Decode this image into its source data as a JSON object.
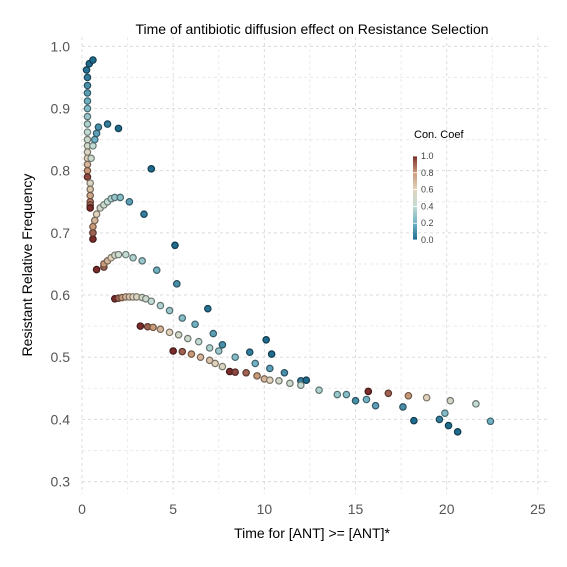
{
  "chart_data": {
    "type": "scatter",
    "title": "Time of antibiotic diffusion effect on Resistance Selection",
    "xlabel": "Time for [ANT] >= [ANT]*",
    "ylabel": "Resistant Relative Frequency",
    "xlim": [
      0,
      25.5
    ],
    "ylim": [
      0.28,
      1.015
    ],
    "xticks": [
      0,
      5,
      10,
      15,
      20,
      25
    ],
    "yticks": [
      0.3,
      0.4,
      0.5,
      0.6,
      0.7,
      0.8,
      0.9,
      1.0
    ],
    "x_tick_labels": [
      "0",
      "5",
      "10",
      "15",
      "20",
      "25"
    ],
    "y_tick_labels": [
      "0.3",
      "0.4",
      "0.5",
      "0.6",
      "0.7",
      "0.8",
      "0.9",
      "1.0"
    ],
    "grid": true,
    "legend": {
      "title": "Con. Coef",
      "placement": "right",
      "ticks": [
        "1.0",
        "0.8",
        "0.6",
        "0.4",
        "0.2",
        "0.0"
      ],
      "colormap": [
        "#1f6b8e",
        "#70b2c4",
        "#c3dcd3",
        "#e1d3bc",
        "#c89978",
        "#7a2c2a"
      ]
    },
    "color_scale": "con_coef",
    "points": [
      {
        "x": 0.25,
        "y": 0.962,
        "c": 0.02
      },
      {
        "x": 0.3,
        "y": 0.95,
        "c": 0.05
      },
      {
        "x": 0.3,
        "y": 0.937,
        "c": 0.1
      },
      {
        "x": 0.3,
        "y": 0.925,
        "c": 0.15
      },
      {
        "x": 0.3,
        "y": 0.912,
        "c": 0.2
      },
      {
        "x": 0.3,
        "y": 0.9,
        "c": 0.25
      },
      {
        "x": 0.3,
        "y": 0.887,
        "c": 0.3
      },
      {
        "x": 0.3,
        "y": 0.875,
        "c": 0.35
      },
      {
        "x": 0.3,
        "y": 0.862,
        "c": 0.4
      },
      {
        "x": 0.3,
        "y": 0.85,
        "c": 0.45
      },
      {
        "x": 0.3,
        "y": 0.84,
        "c": 0.5
      },
      {
        "x": 0.3,
        "y": 0.83,
        "c": 0.55
      },
      {
        "x": 0.3,
        "y": 0.82,
        "c": 0.6
      },
      {
        "x": 0.3,
        "y": 0.81,
        "c": 0.7
      },
      {
        "x": 0.3,
        "y": 0.8,
        "c": 0.8
      },
      {
        "x": 0.3,
        "y": 0.79,
        "c": 0.95
      },
      {
        "x": 0.4,
        "y": 0.972,
        "c": 0.0
      },
      {
        "x": 0.6,
        "y": 0.978,
        "c": 0.0
      },
      {
        "x": 0.45,
        "y": 0.78,
        "c": 0.55
      },
      {
        "x": 0.45,
        "y": 0.77,
        "c": 0.65
      },
      {
        "x": 0.45,
        "y": 0.76,
        "c": 0.75
      },
      {
        "x": 0.45,
        "y": 0.75,
        "c": 0.85
      },
      {
        "x": 0.45,
        "y": 0.745,
        "c": 0.9
      },
      {
        "x": 0.45,
        "y": 0.74,
        "c": 1.0
      },
      {
        "x": 0.5,
        "y": 0.82,
        "c": 0.45
      },
      {
        "x": 0.6,
        "y": 0.84,
        "c": 0.4
      },
      {
        "x": 0.7,
        "y": 0.85,
        "c": 0.2
      },
      {
        "x": 0.8,
        "y": 0.86,
        "c": 0.15
      },
      {
        "x": 0.9,
        "y": 0.87,
        "c": 0.1
      },
      {
        "x": 1.4,
        "y": 0.875,
        "c": 0.05
      },
      {
        "x": 2.0,
        "y": 0.868,
        "c": 0.0
      },
      {
        "x": 3.8,
        "y": 0.803,
        "c": 0.0
      },
      {
        "x": 0.6,
        "y": 0.69,
        "c": 1.0
      },
      {
        "x": 0.6,
        "y": 0.7,
        "c": 0.9
      },
      {
        "x": 0.6,
        "y": 0.71,
        "c": 0.8
      },
      {
        "x": 0.7,
        "y": 0.72,
        "c": 0.7
      },
      {
        "x": 0.8,
        "y": 0.73,
        "c": 0.6
      },
      {
        "x": 1.0,
        "y": 0.74,
        "c": 0.5
      },
      {
        "x": 1.2,
        "y": 0.745,
        "c": 0.45
      },
      {
        "x": 1.4,
        "y": 0.75,
        "c": 0.4
      },
      {
        "x": 1.6,
        "y": 0.755,
        "c": 0.35
      },
      {
        "x": 1.8,
        "y": 0.757,
        "c": 0.3
      },
      {
        "x": 2.1,
        "y": 0.757,
        "c": 0.25
      },
      {
        "x": 2.6,
        "y": 0.75,
        "c": 0.15
      },
      {
        "x": 3.4,
        "y": 0.73,
        "c": 0.05
      },
      {
        "x": 5.1,
        "y": 0.68,
        "c": 0.0
      },
      {
        "x": 0.8,
        "y": 0.641,
        "c": 1.0
      },
      {
        "x": 1.2,
        "y": 0.645,
        "c": 0.9
      },
      {
        "x": 1.2,
        "y": 0.65,
        "c": 0.8
      },
      {
        "x": 1.4,
        "y": 0.655,
        "c": 0.7
      },
      {
        "x": 1.6,
        "y": 0.66,
        "c": 0.6
      },
      {
        "x": 1.8,
        "y": 0.664,
        "c": 0.5
      },
      {
        "x": 2.0,
        "y": 0.665,
        "c": 0.45
      },
      {
        "x": 2.4,
        "y": 0.665,
        "c": 0.4
      },
      {
        "x": 2.8,
        "y": 0.66,
        "c": 0.35
      },
      {
        "x": 3.3,
        "y": 0.655,
        "c": 0.3
      },
      {
        "x": 4.1,
        "y": 0.64,
        "c": 0.2
      },
      {
        "x": 5.2,
        "y": 0.618,
        "c": 0.1
      },
      {
        "x": 6.9,
        "y": 0.578,
        "c": 0.02
      },
      {
        "x": 1.8,
        "y": 0.594,
        "c": 1.0
      },
      {
        "x": 2.0,
        "y": 0.595,
        "c": 0.9
      },
      {
        "x": 2.2,
        "y": 0.596,
        "c": 0.8
      },
      {
        "x": 2.4,
        "y": 0.597,
        "c": 0.7
      },
      {
        "x": 2.6,
        "y": 0.597,
        "c": 0.65
      },
      {
        "x": 2.8,
        "y": 0.597,
        "c": 0.6
      },
      {
        "x": 3.0,
        "y": 0.597,
        "c": 0.55
      },
      {
        "x": 3.3,
        "y": 0.596,
        "c": 0.5
      },
      {
        "x": 3.5,
        "y": 0.594,
        "c": 0.45
      },
      {
        "x": 3.8,
        "y": 0.59,
        "c": 0.4
      },
      {
        "x": 4.3,
        "y": 0.583,
        "c": 0.35
      },
      {
        "x": 4.8,
        "y": 0.575,
        "c": 0.3
      },
      {
        "x": 5.5,
        "y": 0.563,
        "c": 0.25
      },
      {
        "x": 6.2,
        "y": 0.553,
        "c": 0.2
      },
      {
        "x": 7.2,
        "y": 0.538,
        "c": 0.15
      },
      {
        "x": 7.7,
        "y": 0.52,
        "c": 0.1
      },
      {
        "x": 9.2,
        "y": 0.508,
        "c": 0.05
      },
      {
        "x": 10.1,
        "y": 0.528,
        "c": 0.0
      },
      {
        "x": 10.4,
        "y": 0.505,
        "c": 0.0
      },
      {
        "x": 3.2,
        "y": 0.55,
        "c": 1.0
      },
      {
        "x": 3.6,
        "y": 0.549,
        "c": 0.9
      },
      {
        "x": 3.9,
        "y": 0.548,
        "c": 0.8
      },
      {
        "x": 4.3,
        "y": 0.545,
        "c": 0.7
      },
      {
        "x": 4.8,
        "y": 0.54,
        "c": 0.6
      },
      {
        "x": 5.3,
        "y": 0.536,
        "c": 0.5
      },
      {
        "x": 5.8,
        "y": 0.53,
        "c": 0.45
      },
      {
        "x": 6.4,
        "y": 0.525,
        "c": 0.4
      },
      {
        "x": 7.0,
        "y": 0.515,
        "c": 0.35
      },
      {
        "x": 7.5,
        "y": 0.51,
        "c": 0.3
      },
      {
        "x": 8.4,
        "y": 0.5,
        "c": 0.25
      },
      {
        "x": 9.5,
        "y": 0.49,
        "c": 0.2
      },
      {
        "x": 10.3,
        "y": 0.482,
        "c": 0.15
      },
      {
        "x": 11.1,
        "y": 0.475,
        "c": 0.1
      },
      {
        "x": 12.0,
        "y": 0.462,
        "c": 0.05
      },
      {
        "x": 12.3,
        "y": 0.463,
        "c": 0.0
      },
      {
        "x": 5.0,
        "y": 0.51,
        "c": 1.0
      },
      {
        "x": 5.5,
        "y": 0.509,
        "c": 0.9
      },
      {
        "x": 6.0,
        "y": 0.505,
        "c": 0.8
      },
      {
        "x": 6.5,
        "y": 0.5,
        "c": 0.7
      },
      {
        "x": 7.0,
        "y": 0.495,
        "c": 0.65
      },
      {
        "x": 7.3,
        "y": 0.49,
        "c": 0.6
      },
      {
        "x": 7.7,
        "y": 0.485,
        "c": 0.55
      },
      {
        "x": 8.1,
        "y": 0.477,
        "c": 1.0
      },
      {
        "x": 8.4,
        "y": 0.476,
        "c": 0.95
      },
      {
        "x": 9.0,
        "y": 0.475,
        "c": 0.9
      },
      {
        "x": 9.6,
        "y": 0.47,
        "c": 0.8
      },
      {
        "x": 10.0,
        "y": 0.465,
        "c": 0.7
      },
      {
        "x": 10.3,
        "y": 0.463,
        "c": 0.6
      },
      {
        "x": 10.8,
        "y": 0.462,
        "c": 0.5
      },
      {
        "x": 11.4,
        "y": 0.458,
        "c": 0.45
      },
      {
        "x": 12.0,
        "y": 0.455,
        "c": 0.4
      },
      {
        "x": 13.0,
        "y": 0.447,
        "c": 0.35
      },
      {
        "x": 14.0,
        "y": 0.44,
        "c": 0.3
      },
      {
        "x": 14.5,
        "y": 0.44,
        "c": 0.25
      },
      {
        "x": 15.6,
        "y": 0.432,
        "c": 0.2
      },
      {
        "x": 16.1,
        "y": 0.422,
        "c": 0.15
      },
      {
        "x": 17.6,
        "y": 0.42,
        "c": 0.1
      },
      {
        "x": 19.6,
        "y": 0.4,
        "c": 0.05
      },
      {
        "x": 20.6,
        "y": 0.38,
        "c": 0.0
      },
      {
        "x": 15.0,
        "y": 0.43,
        "c": 0.1
      },
      {
        "x": 15.7,
        "y": 0.445,
        "c": 1.0
      },
      {
        "x": 16.8,
        "y": 0.442,
        "c": 0.9
      },
      {
        "x": 17.9,
        "y": 0.438,
        "c": 0.8
      },
      {
        "x": 18.9,
        "y": 0.435,
        "c": 0.6
      },
      {
        "x": 20.2,
        "y": 0.43,
        "c": 0.5
      },
      {
        "x": 21.6,
        "y": 0.425,
        "c": 0.4
      },
      {
        "x": 22.4,
        "y": 0.397,
        "c": 0.2
      },
      {
        "x": 18.2,
        "y": 0.398,
        "c": 0.0
      },
      {
        "x": 19.9,
        "y": 0.41,
        "c": 0.25
      },
      {
        "x": 20.1,
        "y": 0.39,
        "c": 0.0
      }
    ]
  }
}
